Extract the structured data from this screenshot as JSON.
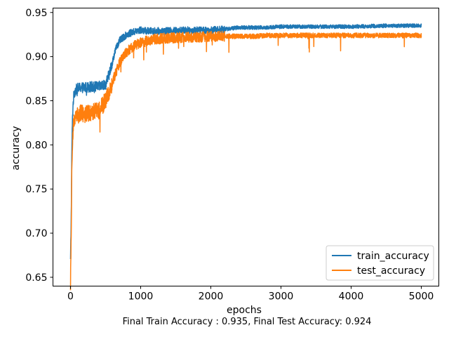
{
  "chart_data": {
    "type": "line",
    "title": "",
    "xlabel": "epochs",
    "ylabel": "accuracy",
    "caption": "Final Train Accuracy : 0.935, Final Test Accuracy: 0.924",
    "xlim": [
      -250,
      5250
    ],
    "ylim": [
      0.64,
      0.955
    ],
    "x_ticks": [
      0,
      1000,
      2000,
      3000,
      4000,
      5000
    ],
    "x_tick_labels": [
      "0",
      "1000",
      "2000",
      "3000",
      "4000",
      "5000"
    ],
    "y_ticks": [
      0.65,
      0.7,
      0.75,
      0.8,
      0.85,
      0.9,
      0.95
    ],
    "y_tick_labels": [
      "0.65",
      "0.70",
      "0.75",
      "0.80",
      "0.85",
      "0.90",
      "0.95"
    ],
    "grid": false,
    "legend_position": "lower-right",
    "series": [
      {
        "name": "train_accuracy",
        "color": "#1f77b4",
        "x": [
          0,
          10,
          20,
          30,
          40,
          50,
          70,
          100,
          150,
          200,
          300,
          400,
          500,
          550,
          600,
          650,
          700,
          800,
          900,
          1000,
          1100,
          1200,
          1400,
          1600,
          1800,
          2000,
          2200,
          2400,
          2600,
          2800,
          3000,
          3500,
          4000,
          4500,
          5000
        ],
        "y": [
          0.668,
          0.72,
          0.8,
          0.835,
          0.85,
          0.858,
          0.862,
          0.864,
          0.865,
          0.865,
          0.866,
          0.866,
          0.868,
          0.88,
          0.895,
          0.91,
          0.918,
          0.925,
          0.928,
          0.93,
          0.929,
          0.929,
          0.929,
          0.93,
          0.93,
          0.93,
          0.931,
          0.933,
          0.933,
          0.933,
          0.934,
          0.934,
          0.934,
          0.935,
          0.935
        ]
      },
      {
        "name": "test_accuracy",
        "color": "#ff7f0e",
        "x": [
          0,
          10,
          20,
          30,
          40,
          50,
          70,
          100,
          150,
          200,
          300,
          400,
          500,
          550,
          600,
          650,
          700,
          800,
          900,
          1000,
          1100,
          1200,
          1400,
          1600,
          1800,
          2000,
          2200,
          2400,
          2600,
          2800,
          3000,
          3500,
          4000,
          4500,
          5000
        ],
        "y": [
          0.645,
          0.7,
          0.78,
          0.81,
          0.82,
          0.826,
          0.83,
          0.834,
          0.836,
          0.836,
          0.837,
          0.838,
          0.85,
          0.86,
          0.872,
          0.883,
          0.893,
          0.905,
          0.912,
          0.916,
          0.918,
          0.92,
          0.921,
          0.922,
          0.922,
          0.923,
          0.923,
          0.923,
          0.923,
          0.924,
          0.924,
          0.924,
          0.924,
          0.924,
          0.924
        ]
      }
    ]
  }
}
